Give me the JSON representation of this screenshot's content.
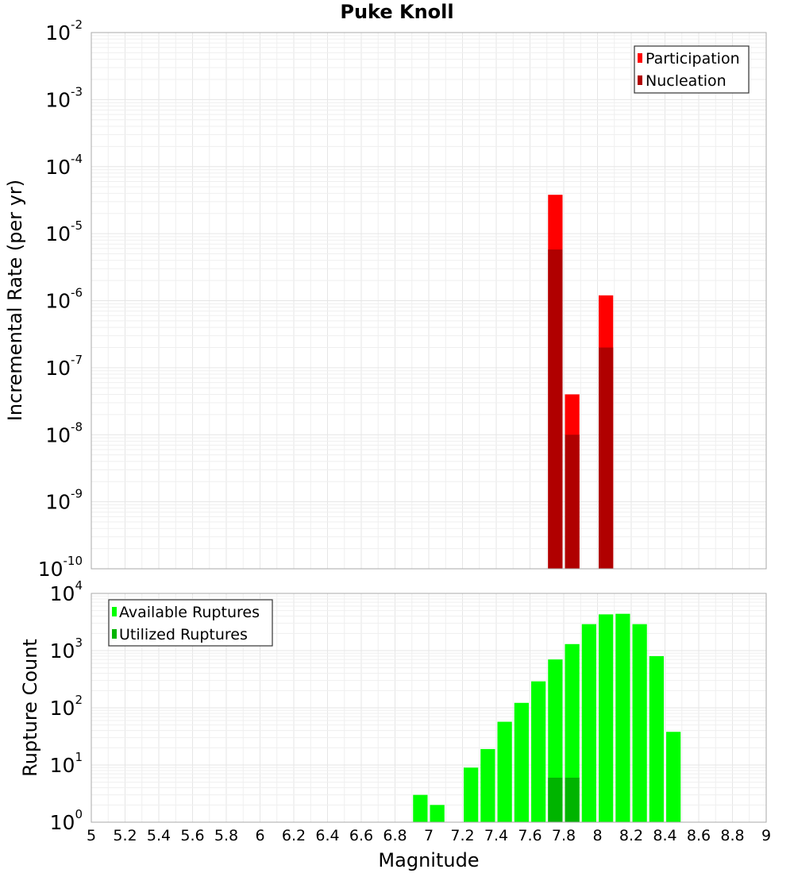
{
  "chart_data": [
    {
      "type": "bar",
      "title": "Puke Knoll",
      "xlabel": "",
      "ylabel": "Incremental Rate (per yr)",
      "xlim": [
        5,
        9
      ],
      "ylim_exponents": [
        -10,
        -2
      ],
      "yscale": "log",
      "bar_width": 0.1,
      "legend_position": "top-right",
      "series": [
        {
          "name": "Participation",
          "color": "#ff0000",
          "points": [
            {
              "x": 7.75,
              "y": 3.8e-05
            },
            {
              "x": 7.85,
              "y": 4e-08
            },
            {
              "x": 8.05,
              "y": 1.2e-06
            }
          ]
        },
        {
          "name": "Nucleation",
          "color": "#b00000",
          "points": [
            {
              "x": 7.75,
              "y": 5.8e-06
            },
            {
              "x": 7.85,
              "y": 1e-08
            },
            {
              "x": 8.05,
              "y": 2e-07
            }
          ]
        }
      ]
    },
    {
      "type": "bar",
      "title": "",
      "xlabel": "Magnitude",
      "ylabel": "Rupture Count",
      "xlim": [
        5,
        9
      ],
      "ylim_exponents": [
        0,
        4
      ],
      "yscale": "log",
      "bar_width": 0.1,
      "legend_position": "top-left",
      "x_ticks": [
        "5",
        "5.2",
        "5.4",
        "5.6",
        "5.8",
        "6",
        "6.2",
        "6.4",
        "6.6",
        "6.8",
        "7",
        "7.2",
        "7.4",
        "7.6",
        "7.8",
        "8",
        "8.2",
        "8.4",
        "8.6",
        "8.8",
        "9"
      ],
      "series": [
        {
          "name": "Available Ruptures",
          "color": "#00ff00",
          "points": [
            {
              "x": 6.95,
              "y": 3
            },
            {
              "x": 7.05,
              "y": 2
            },
            {
              "x": 7.15,
              "y": 1
            },
            {
              "x": 7.25,
              "y": 9
            },
            {
              "x": 7.35,
              "y": 19
            },
            {
              "x": 7.45,
              "y": 57
            },
            {
              "x": 7.55,
              "y": 122
            },
            {
              "x": 7.65,
              "y": 290
            },
            {
              "x": 7.75,
              "y": 700
            },
            {
              "x": 7.85,
              "y": 1300
            },
            {
              "x": 7.95,
              "y": 2900
            },
            {
              "x": 8.05,
              "y": 4300
            },
            {
              "x": 8.15,
              "y": 4400
            },
            {
              "x": 8.25,
              "y": 2900
            },
            {
              "x": 8.35,
              "y": 800
            },
            {
              "x": 8.45,
              "y": 38
            }
          ]
        },
        {
          "name": "Utilized Ruptures",
          "color": "#00b400",
          "points": [
            {
              "x": 7.75,
              "y": 6
            },
            {
              "x": 7.85,
              "y": 6
            },
            {
              "x": 8.05,
              "y": 1
            }
          ]
        }
      ]
    }
  ]
}
